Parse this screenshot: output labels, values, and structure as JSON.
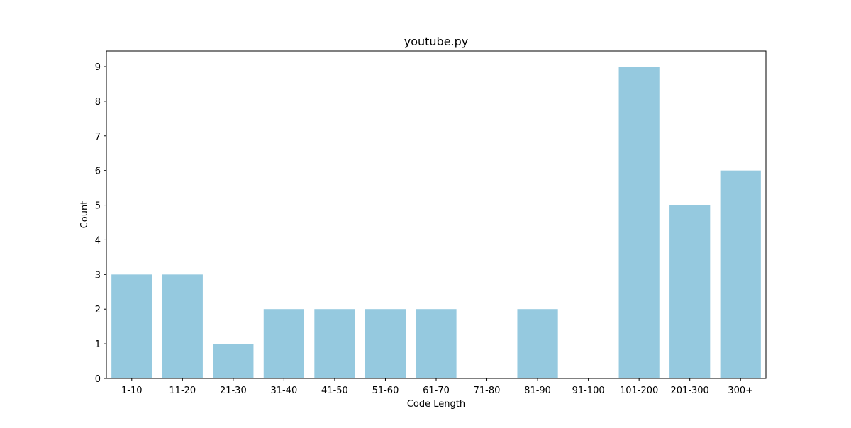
{
  "chart_data": {
    "type": "bar",
    "title": "youtube.py",
    "xlabel": "Code Length",
    "ylabel": "Count",
    "categories": [
      "1-10",
      "11-20",
      "21-30",
      "31-40",
      "41-50",
      "51-60",
      "61-70",
      "71-80",
      "81-90",
      "91-100",
      "101-200",
      "201-300",
      "300+"
    ],
    "values": [
      3,
      3,
      1,
      2,
      2,
      2,
      2,
      0,
      2,
      0,
      9,
      5,
      6
    ],
    "ylim": [
      0,
      9.45
    ],
    "yticks": [
      0,
      1,
      2,
      3,
      4,
      5,
      6,
      7,
      8,
      9
    ],
    "bar_color": "#95c9df",
    "grid": false,
    "legend": "none"
  }
}
